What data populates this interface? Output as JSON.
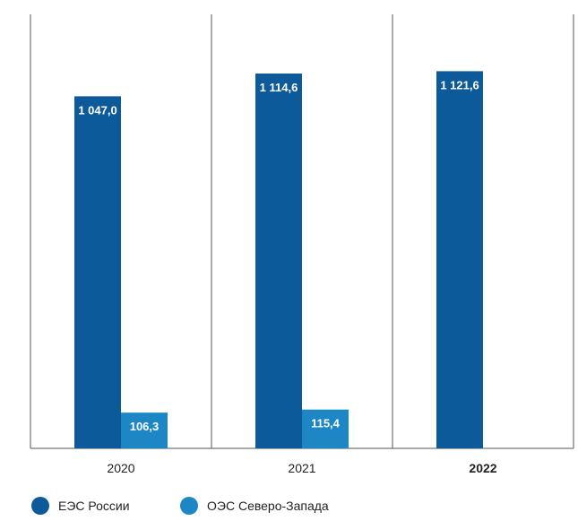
{
  "chart_data": {
    "type": "bar",
    "categories": [
      "2020",
      "2021",
      "2022"
    ],
    "highlight_category": "2022",
    "series": [
      {
        "name": "ЕЭС России",
        "color": "#0d5a9a",
        "values": [
          1047.0,
          1114.6,
          1121.6
        ],
        "labels": [
          "1 047,0",
          "1 114,6",
          "1 121,6"
        ]
      },
      {
        "name": "ОЭС Северо-Запада",
        "color": "#1d86c4",
        "values": [
          106.3,
          115.4,
          null
        ],
        "labels": [
          "106,3",
          "115,4",
          ""
        ]
      }
    ],
    "ylim": [
      0,
      1200
    ],
    "grid": false,
    "legend_position": "bottom-left",
    "title": "",
    "xlabel": "",
    "ylabel": ""
  }
}
